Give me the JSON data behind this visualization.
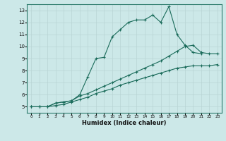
{
  "xlabel": "Humidex (Indice chaleur)",
  "xlim": [
    -0.5,
    23.5
  ],
  "ylim": [
    4.5,
    13.5
  ],
  "xticks": [
    0,
    1,
    2,
    3,
    4,
    5,
    6,
    7,
    8,
    9,
    10,
    11,
    12,
    13,
    14,
    15,
    16,
    17,
    18,
    19,
    20,
    21,
    22,
    23
  ],
  "yticks": [
    5,
    6,
    7,
    8,
    9,
    10,
    11,
    12,
    13
  ],
  "bg_color": "#cce8e8",
  "grid_color": "#b8d4d4",
  "line_color": "#1a6b5a",
  "line1_x": [
    0,
    1,
    2,
    3,
    4,
    5,
    6,
    7,
    8,
    9,
    10,
    11,
    12,
    13,
    14,
    15,
    16,
    17,
    18,
    19,
    20,
    21
  ],
  "line1_y": [
    5.0,
    5.0,
    5.0,
    5.3,
    5.4,
    5.5,
    6.0,
    7.5,
    9.0,
    9.1,
    10.8,
    11.4,
    12.0,
    12.2,
    12.2,
    12.6,
    12.0,
    13.3,
    11.0,
    10.1,
    9.5,
    9.4
  ],
  "line2_x": [
    0,
    1,
    2,
    3,
    4,
    5,
    6,
    7,
    8,
    9,
    10,
    11,
    12,
    13,
    14,
    15,
    16,
    17,
    18,
    19,
    20,
    21,
    22,
    23
  ],
  "line2_y": [
    5.0,
    5.0,
    5.0,
    5.3,
    5.4,
    5.5,
    5.9,
    6.1,
    6.4,
    6.7,
    7.0,
    7.3,
    7.6,
    7.9,
    8.2,
    8.5,
    8.8,
    9.2,
    9.6,
    10.0,
    10.1,
    9.5,
    9.4,
    9.4
  ],
  "line3_x": [
    0,
    1,
    2,
    3,
    4,
    5,
    6,
    7,
    8,
    9,
    10,
    11,
    12,
    13,
    14,
    15,
    16,
    17,
    18,
    19,
    20,
    21,
    22,
    23
  ],
  "line3_y": [
    5.0,
    5.0,
    5.0,
    5.1,
    5.2,
    5.4,
    5.6,
    5.8,
    6.1,
    6.3,
    6.5,
    6.8,
    7.0,
    7.2,
    7.4,
    7.6,
    7.8,
    8.0,
    8.2,
    8.3,
    8.4,
    8.4,
    8.4,
    8.5
  ]
}
